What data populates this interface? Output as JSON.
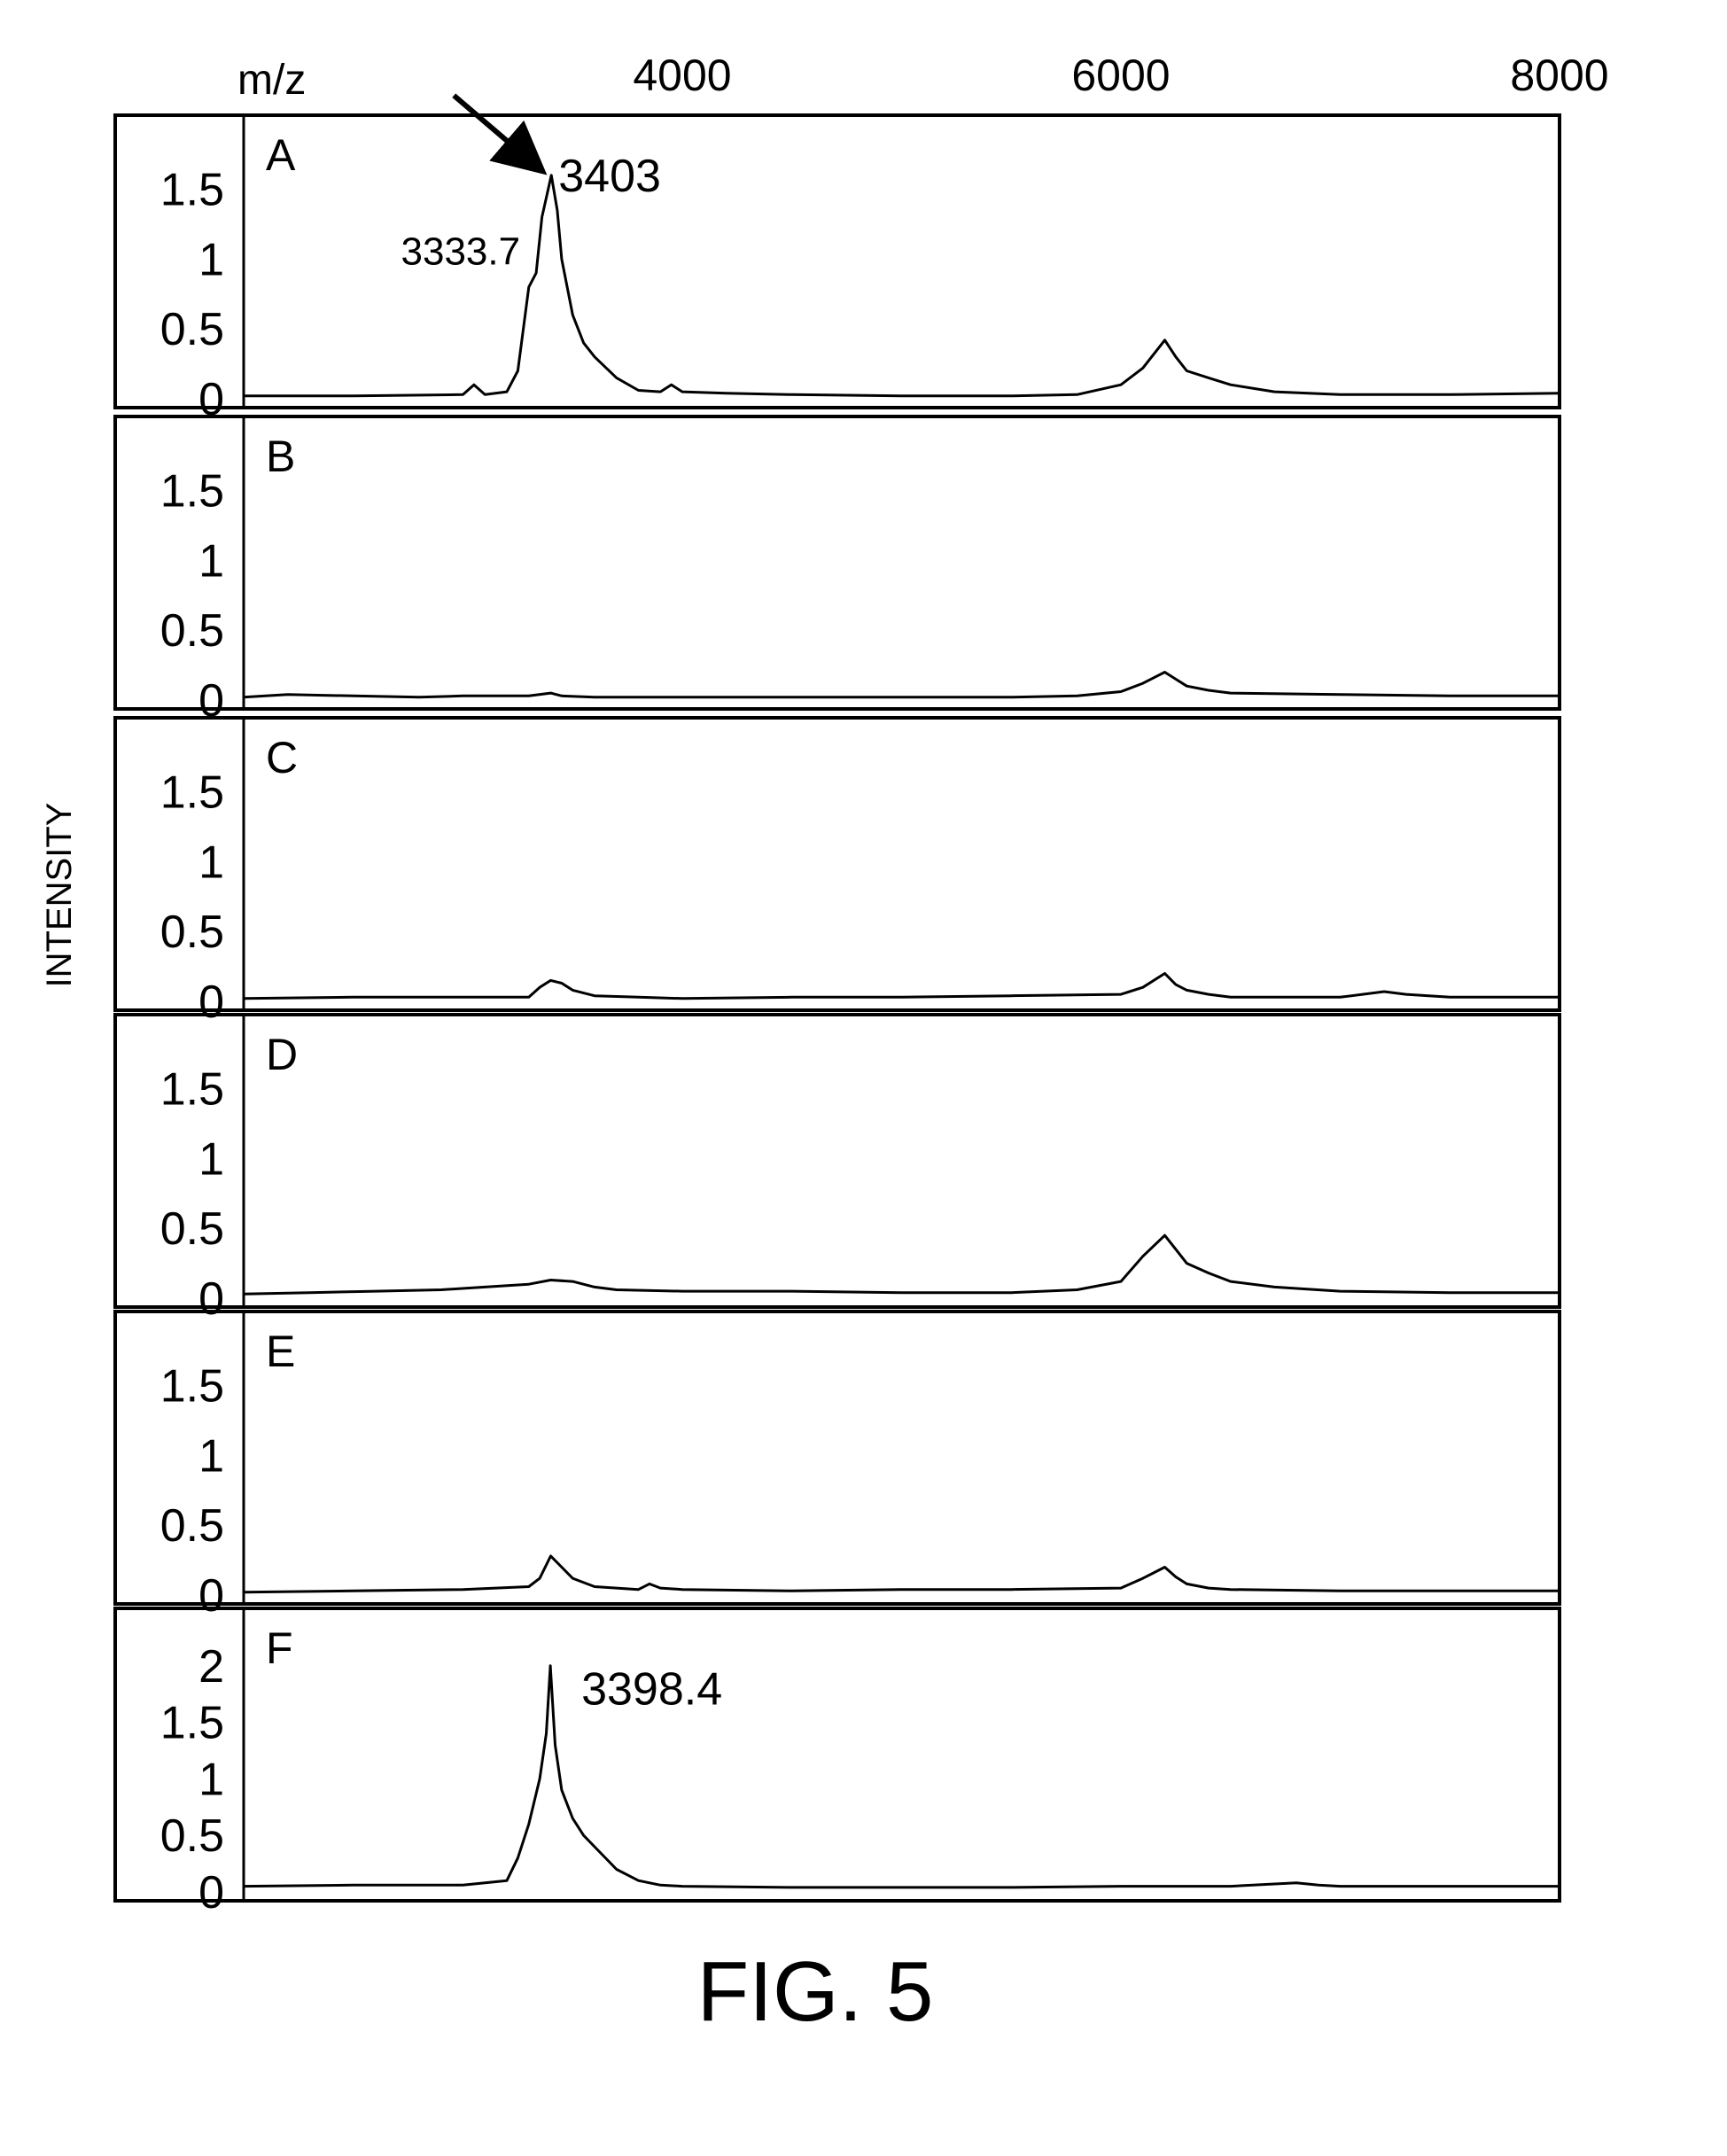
{
  "figure": {
    "caption": "FIG. 5",
    "y_axis_label": "INTENSITY",
    "x_axis_label": "m/z",
    "x_ticks": [
      {
        "value": 4000,
        "label": "4000"
      },
      {
        "value": 6000,
        "label": "6000"
      },
      {
        "value": 8000,
        "label": "8000"
      }
    ]
  },
  "chart_data": [
    {
      "type": "line",
      "panel": "A",
      "xlim": [
        2000,
        8000
      ],
      "ylim": [
        0,
        1.7
      ],
      "yticks": [
        {
          "value": 0,
          "label": "0"
        },
        {
          "value": 0.5,
          "label": "0.5"
        },
        {
          "value": 1,
          "label": "1"
        },
        {
          "value": 1.5,
          "label": "1.5"
        }
      ],
      "series": [
        {
          "x": [
            2000,
            2500,
            3000,
            3050,
            3100,
            3200,
            3250,
            3300,
            3333.7,
            3360,
            3403,
            3430,
            3450,
            3500,
            3550,
            3600,
            3700,
            3800,
            3900,
            3950,
            4000,
            4200,
            4500,
            5000,
            5500,
            5800,
            6000,
            6100,
            6200,
            6250,
            6300,
            6400,
            6500,
            6700,
            7000,
            7500,
            8000
          ],
          "y": [
            0.02,
            0.02,
            0.03,
            0.1,
            0.03,
            0.05,
            0.2,
            0.8,
            0.9,
            1.3,
            1.6,
            1.35,
            1.0,
            0.6,
            0.4,
            0.3,
            0.15,
            0.06,
            0.05,
            0.1,
            0.05,
            0.04,
            0.03,
            0.02,
            0.02,
            0.03,
            0.1,
            0.22,
            0.42,
            0.3,
            0.2,
            0.15,
            0.1,
            0.05,
            0.03,
            0.03,
            0.04
          ]
        }
      ],
      "annotations": [
        {
          "label": "3403",
          "x": 3403,
          "y": 1.6,
          "arrow": true
        },
        {
          "label": "3333.7",
          "x": 3333.7,
          "y": 1.05
        }
      ]
    },
    {
      "type": "line",
      "panel": "B",
      "xlim": [
        2000,
        8000
      ],
      "ylim": [
        0,
        1.7
      ],
      "yticks": [
        {
          "value": 0,
          "label": "0"
        },
        {
          "value": 0.5,
          "label": "0.5"
        },
        {
          "value": 1,
          "label": "1"
        },
        {
          "value": 1.5,
          "label": "1.5"
        }
      ],
      "series": [
        {
          "x": [
            2000,
            2200,
            2500,
            2800,
            3000,
            3300,
            3400,
            3450,
            3600,
            4000,
            4500,
            5000,
            5500,
            5800,
            6000,
            6100,
            6200,
            6250,
            6300,
            6400,
            6500,
            7000,
            7500,
            8000
          ],
          "y": [
            0.02,
            0.04,
            0.03,
            0.02,
            0.03,
            0.03,
            0.05,
            0.03,
            0.02,
            0.02,
            0.02,
            0.02,
            0.02,
            0.03,
            0.06,
            0.12,
            0.2,
            0.15,
            0.1,
            0.07,
            0.05,
            0.04,
            0.03,
            0.03
          ]
        }
      ],
      "annotations": []
    },
    {
      "type": "line",
      "panel": "C",
      "xlim": [
        2000,
        8000
      ],
      "ylim": [
        0,
        1.7
      ],
      "yticks": [
        {
          "value": 0,
          "label": "0"
        },
        {
          "value": 0.5,
          "label": "0.5"
        },
        {
          "value": 1,
          "label": "1"
        },
        {
          "value": 1.5,
          "label": "1.5"
        }
      ],
      "series": [
        {
          "x": [
            2000,
            2500,
            3000,
            3300,
            3350,
            3400,
            3450,
            3500,
            3600,
            3800,
            4000,
            4500,
            5000,
            5500,
            6000,
            6100,
            6200,
            6250,
            6300,
            6400,
            6500,
            7000,
            7200,
            7300,
            7500,
            8000
          ],
          "y": [
            0.02,
            0.03,
            0.03,
            0.03,
            0.1,
            0.15,
            0.13,
            0.08,
            0.04,
            0.03,
            0.02,
            0.03,
            0.03,
            0.04,
            0.05,
            0.1,
            0.2,
            0.12,
            0.08,
            0.05,
            0.03,
            0.03,
            0.07,
            0.05,
            0.03,
            0.03
          ]
        }
      ],
      "annotations": []
    },
    {
      "type": "line",
      "panel": "D",
      "xlim": [
        2000,
        8000
      ],
      "ylim": [
        0,
        1.7
      ],
      "yticks": [
        {
          "value": 0,
          "label": "0"
        },
        {
          "value": 0.5,
          "label": "0.5"
        },
        {
          "value": 1,
          "label": "1"
        },
        {
          "value": 1.5,
          "label": "1.5"
        }
      ],
      "series": [
        {
          "x": [
            2000,
            2300,
            2600,
            2900,
            3100,
            3300,
            3400,
            3500,
            3600,
            3700,
            4000,
            4500,
            5000,
            5500,
            5800,
            6000,
            6100,
            6200,
            6250,
            6300,
            6400,
            6500,
            6700,
            7000,
            7500,
            8000
          ],
          "y": [
            0.03,
            0.04,
            0.05,
            0.06,
            0.08,
            0.1,
            0.13,
            0.12,
            0.08,
            0.06,
            0.05,
            0.05,
            0.04,
            0.04,
            0.06,
            0.12,
            0.3,
            0.45,
            0.35,
            0.25,
            0.18,
            0.12,
            0.08,
            0.05,
            0.04,
            0.04
          ]
        }
      ],
      "annotations": []
    },
    {
      "type": "line",
      "panel": "E",
      "xlim": [
        2000,
        8000
      ],
      "ylim": [
        0,
        1.7
      ],
      "yticks": [
        {
          "value": 0,
          "label": "0"
        },
        {
          "value": 0.5,
          "label": "0.5"
        },
        {
          "value": 1,
          "label": "1"
        },
        {
          "value": 1.5,
          "label": "1.5"
        }
      ],
      "series": [
        {
          "x": [
            2000,
            2500,
            3000,
            3300,
            3350,
            3400,
            3450,
            3500,
            3600,
            3800,
            3850,
            3900,
            4000,
            4500,
            5000,
            5500,
            6000,
            6100,
            6200,
            6250,
            6300,
            6400,
            6500,
            7000,
            7500,
            8000
          ],
          "y": [
            0.02,
            0.03,
            0.04,
            0.06,
            0.12,
            0.28,
            0.2,
            0.12,
            0.06,
            0.04,
            0.08,
            0.05,
            0.04,
            0.03,
            0.04,
            0.04,
            0.05,
            0.12,
            0.2,
            0.13,
            0.08,
            0.05,
            0.04,
            0.03,
            0.03,
            0.03
          ]
        }
      ],
      "annotations": []
    },
    {
      "type": "line",
      "panel": "F",
      "xlim": [
        2000,
        8000
      ],
      "ylim": [
        0,
        2.1
      ],
      "yticks": [
        {
          "value": 0,
          "label": "0"
        },
        {
          "value": 0.5,
          "label": "0.5"
        },
        {
          "value": 1,
          "label": "1"
        },
        {
          "value": 1.5,
          "label": "1.5"
        },
        {
          "value": 2,
          "label": "2"
        }
      ],
      "series": [
        {
          "x": [
            2000,
            2500,
            3000,
            3200,
            3250,
            3300,
            3350,
            3380,
            3398.4,
            3420,
            3450,
            3500,
            3550,
            3600,
            3700,
            3800,
            3900,
            4000,
            4500,
            5000,
            5500,
            6000,
            6500,
            6800,
            6900,
            7000,
            7500,
            8000
          ],
          "y": [
            0.05,
            0.06,
            0.06,
            0.1,
            0.3,
            0.6,
            1.0,
            1.4,
            2.0,
            1.3,
            0.9,
            0.65,
            0.5,
            0.4,
            0.2,
            0.1,
            0.06,
            0.05,
            0.04,
            0.04,
            0.04,
            0.05,
            0.05,
            0.08,
            0.06,
            0.05,
            0.05,
            0.05
          ]
        }
      ],
      "annotations": [
        {
          "label": "3398.4",
          "x": 3398.4,
          "y": 1.8
        }
      ]
    }
  ]
}
